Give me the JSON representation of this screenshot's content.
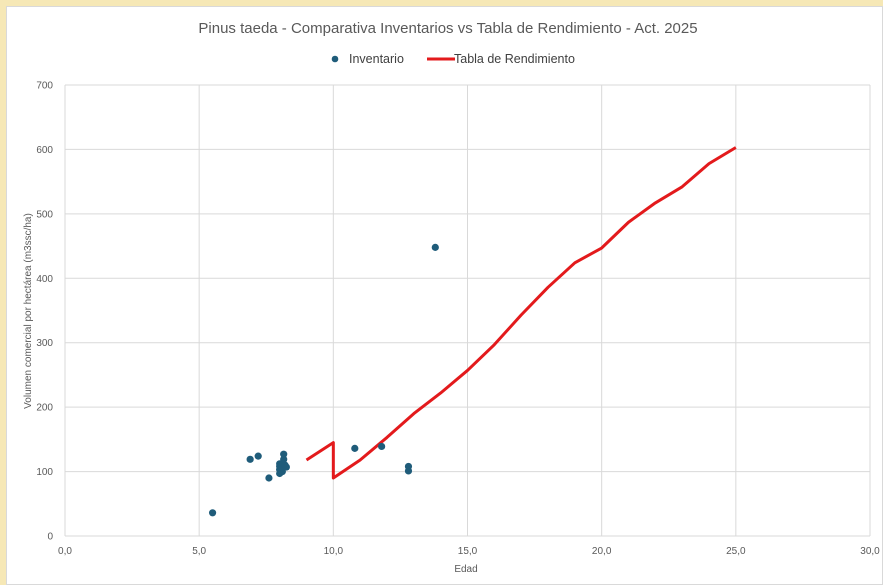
{
  "chart_data": {
    "type": "scatter",
    "title": "Pinus taeda - Comparativa Inventarios vs Tabla de Rendimiento - Act. 2025",
    "xlabel": "Edad",
    "ylabel": "Volumen comercial por hectárea (m3ssc/ha)",
    "xlim": [
      0,
      30
    ],
    "ylim": [
      0,
      700
    ],
    "xticks": [
      0,
      5,
      10,
      15,
      20,
      25,
      30
    ],
    "yticks": [
      0,
      100,
      200,
      300,
      400,
      500,
      600,
      700
    ],
    "x_tick_labels": [
      "0,0",
      "5,0",
      "10,0",
      "15,0",
      "20,0",
      "25,0",
      "30,0"
    ],
    "y_tick_labels": [
      "0",
      "100",
      "200",
      "300",
      "400",
      "500",
      "600",
      "700"
    ],
    "grid": true,
    "legend_position": "top",
    "series": [
      {
        "name": "Inventario",
        "kind": "scatter",
        "color": "#1f5c7a",
        "points": [
          [
            5.5,
            36
          ],
          [
            6.9,
            119
          ],
          [
            7.2,
            124
          ],
          [
            7.6,
            90
          ],
          [
            8.0,
            97
          ],
          [
            8.0,
            103
          ],
          [
            8.0,
            108
          ],
          [
            8.0,
            112
          ],
          [
            8.1,
            100
          ],
          [
            8.1,
            106
          ],
          [
            8.1,
            113
          ],
          [
            8.15,
            119
          ],
          [
            8.15,
            127
          ],
          [
            8.2,
            110
          ],
          [
            8.25,
            107
          ],
          [
            10.8,
            136
          ],
          [
            11.8,
            139
          ],
          [
            12.8,
            101
          ],
          [
            12.8,
            108
          ],
          [
            13.8,
            448
          ]
        ]
      },
      {
        "name": "Tabla de Rendimiento",
        "kind": "line",
        "color": "#e31a1c",
        "points": [
          [
            9,
            118
          ],
          [
            10,
            145
          ],
          [
            10,
            90
          ],
          [
            11,
            118
          ],
          [
            12,
            153
          ],
          [
            13,
            190
          ],
          [
            14,
            222
          ],
          [
            15,
            257
          ],
          [
            16,
            297
          ],
          [
            17,
            343
          ],
          [
            18,
            386
          ],
          [
            19,
            424
          ],
          [
            20,
            447
          ],
          [
            21,
            487
          ],
          [
            22,
            517
          ],
          [
            23,
            542
          ],
          [
            24,
            578
          ],
          [
            25,
            603
          ]
        ]
      }
    ]
  }
}
